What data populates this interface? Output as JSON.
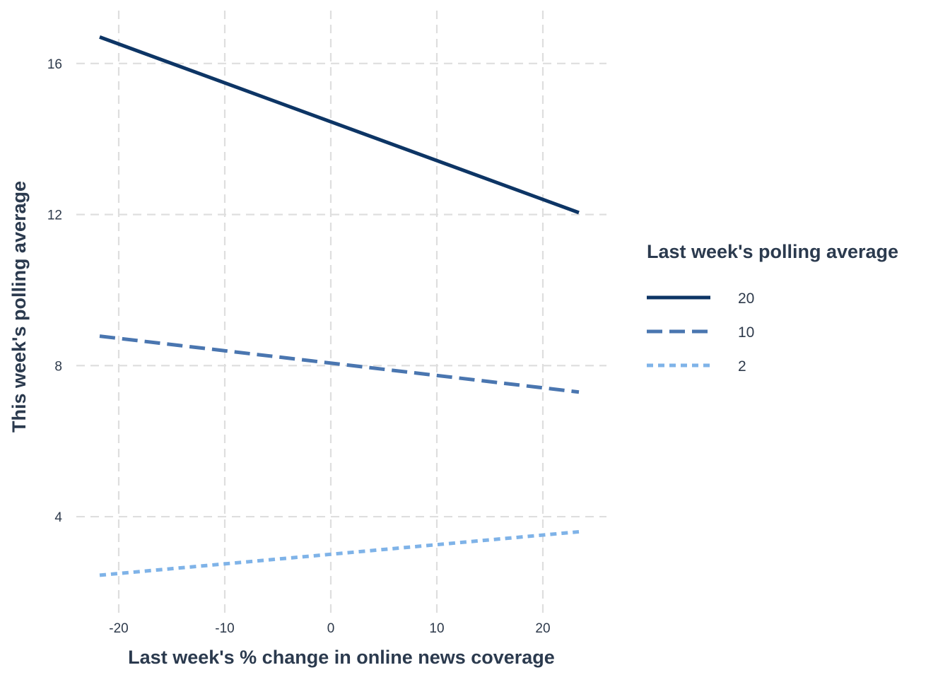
{
  "chart_data": {
    "type": "line",
    "xlabel": "Last week's % change in online news coverage",
    "ylabel": "This week's polling average",
    "xlim": [
      -24,
      26
    ],
    "ylim": [
      1.4,
      17.4
    ],
    "x_ticks": [
      -20,
      -10,
      0,
      10,
      20
    ],
    "y_ticks": [
      4,
      8,
      12,
      16
    ],
    "grid": true,
    "grid_style": "dashed",
    "legend": {
      "title": "Last week's polling average",
      "placement": "right"
    },
    "series": [
      {
        "name": "20",
        "color": "#0d3565",
        "line_style": "solid",
        "x": [
          -21.8,
          23.4
        ],
        "y": [
          16.7,
          12.05
        ]
      },
      {
        "name": "10",
        "color": "#4a76b0",
        "line_style": "dashed",
        "x": [
          -21.8,
          23.4
        ],
        "y": [
          8.78,
          7.3
        ]
      },
      {
        "name": "2",
        "color": "#7fb3e8",
        "line_style": "dotted",
        "x": [
          -21.8,
          23.4
        ],
        "y": [
          2.45,
          3.6
        ]
      }
    ]
  }
}
